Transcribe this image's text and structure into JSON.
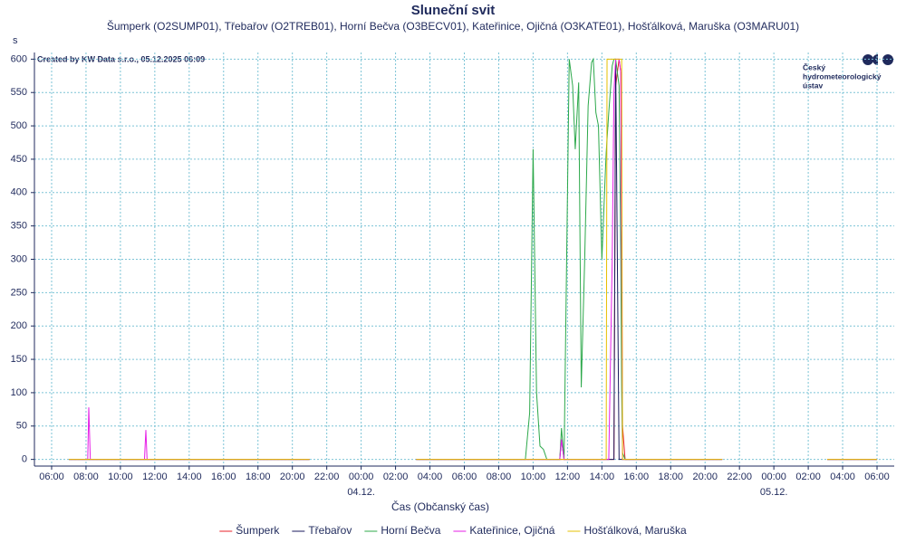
{
  "chart_data": {
    "type": "line",
    "title": "Sluneční svit",
    "subtitle": "Šumperk (O2SUMP01), Třebařov (O2TREB01), Horní Bečva (O3BECV01), Kateřinice, Ojičná (O3KATE01), Hošťálková, Maruška (O3MARU01)",
    "y_label": "s",
    "x_label": "Čas (Občanský čas)",
    "annotation": "Created by KW Data s.r.o., 05.12.2025 06:09",
    "logo_lines": [
      "Český",
      "hydrometeorologický",
      "ústav"
    ],
    "grid": true,
    "legend": "bottom",
    "xlim": [
      -1,
      49
    ],
    "ylim": [
      -10,
      610
    ],
    "yticks": [
      0,
      50,
      100,
      150,
      200,
      250,
      300,
      350,
      400,
      450,
      500,
      550,
      600
    ],
    "xticks": [
      {
        "value": 0,
        "label": "06:00"
      },
      {
        "value": 2,
        "label": "08:00"
      },
      {
        "value": 4,
        "label": "10:00"
      },
      {
        "value": 6,
        "label": "12:00"
      },
      {
        "value": 8,
        "label": "14:00"
      },
      {
        "value": 10,
        "label": "16:00"
      },
      {
        "value": 12,
        "label": "18:00"
      },
      {
        "value": 14,
        "label": "20:00"
      },
      {
        "value": 16,
        "label": "22:00"
      },
      {
        "value": 18,
        "label": "00:00"
      },
      {
        "value": 20,
        "label": "02:00"
      },
      {
        "value": 22,
        "label": "04:00"
      },
      {
        "value": 24,
        "label": "06:00"
      },
      {
        "value": 26,
        "label": "08:00"
      },
      {
        "value": 28,
        "label": "10:00"
      },
      {
        "value": 30,
        "label": "12:00"
      },
      {
        "value": 32,
        "label": "14:00"
      },
      {
        "value": 34,
        "label": "16:00"
      },
      {
        "value": 36,
        "label": "18:00"
      },
      {
        "value": 38,
        "label": "20:00"
      },
      {
        "value": 40,
        "label": "22:00"
      },
      {
        "value": 42,
        "label": "00:00"
      },
      {
        "value": 44,
        "label": "02:00"
      },
      {
        "value": 46,
        "label": "04:00"
      },
      {
        "value": 48,
        "label": "06:00"
      }
    ],
    "x_date_labels": [
      {
        "value": 18,
        "label": "04.12."
      },
      {
        "value": 42,
        "label": "05.12."
      }
    ],
    "x": [
      1,
      2.1,
      2.16,
      2.25,
      5.4,
      5.48,
      5.55,
      15,
      18,
      21.2,
      27.55,
      27.8,
      28.0,
      28.2,
      28.4,
      28.6,
      28.8,
      29.55,
      29.65,
      29.8,
      29.95,
      30.1,
      30.3,
      30.45,
      30.65,
      30.8,
      31.0,
      31.2,
      31.4,
      31.5,
      31.65,
      31.8,
      32.0,
      32.2,
      32.25,
      32.3,
      32.4,
      32.6,
      32.7,
      32.8,
      33.0,
      33.1,
      33.15,
      33.2,
      33.35,
      39,
      42,
      45.1,
      48
    ],
    "series": [
      {
        "name": "Šumperk",
        "color": "#e8202a",
        "values": [
          0,
          0,
          0,
          0,
          0,
          0,
          0,
          0,
          null,
          0,
          0,
          0,
          0,
          0,
          0,
          0,
          0,
          0,
          0,
          0,
          0,
          0,
          0,
          0,
          0,
          0,
          0,
          0,
          0,
          0,
          0,
          0,
          0,
          0,
          0,
          0,
          0,
          0,
          0,
          560,
          600,
          580,
          300,
          50,
          0,
          0,
          null,
          0,
          0
        ]
      },
      {
        "name": "Třebařov",
        "color": "#1a1a5e",
        "values": [
          0,
          0,
          0,
          0,
          0,
          0,
          0,
          0,
          null,
          0,
          0,
          0,
          0,
          0,
          0,
          0,
          0,
          0,
          30,
          0,
          0,
          0,
          0,
          0,
          0,
          0,
          0,
          0,
          0,
          0,
          0,
          0,
          0,
          0,
          0,
          0,
          0,
          0,
          0,
          600,
          0,
          0,
          0,
          0,
          0,
          0,
          null,
          0,
          0
        ]
      },
      {
        "name": "Horní Bečva",
        "color": "#2ca84a",
        "values": [
          0,
          0,
          0,
          0,
          0,
          0,
          0,
          0,
          null,
          0,
          0,
          70,
          465,
          100,
          20,
          15,
          0,
          0,
          47,
          0,
          300,
          600,
          560,
          465,
          565,
          108,
          300,
          530,
          595,
          600,
          520,
          500,
          300,
          430,
          460,
          480,
          520,
          590,
          600,
          600,
          560,
          300,
          100,
          10,
          0,
          0,
          null,
          0,
          0
        ]
      },
      {
        "name": "Kateřinice, Ojičná",
        "color": "#e61ee6",
        "values": [
          0,
          0,
          78,
          0,
          0,
          44,
          0,
          0,
          null,
          0,
          0,
          0,
          0,
          0,
          0,
          0,
          0,
          0,
          30,
          0,
          0,
          0,
          0,
          0,
          0,
          0,
          0,
          0,
          0,
          0,
          0,
          0,
          0,
          0,
          0,
          0,
          0,
          300,
          550,
          600,
          600,
          580,
          300,
          0,
          0,
          0,
          null,
          0,
          0
        ]
      },
      {
        "name": "Hošťálková, Maruška",
        "color": "#e6c000",
        "values": [
          0,
          0,
          0,
          0,
          0,
          0,
          0,
          0,
          null,
          0,
          0,
          0,
          0,
          0,
          0,
          0,
          0,
          0,
          0,
          0,
          0,
          0,
          0,
          0,
          0,
          0,
          0,
          0,
          0,
          0,
          0,
          0,
          0,
          0,
          0,
          600,
          600,
          600,
          600,
          600,
          600,
          600,
          600,
          0,
          0,
          0,
          null,
          0,
          0
        ]
      }
    ]
  }
}
